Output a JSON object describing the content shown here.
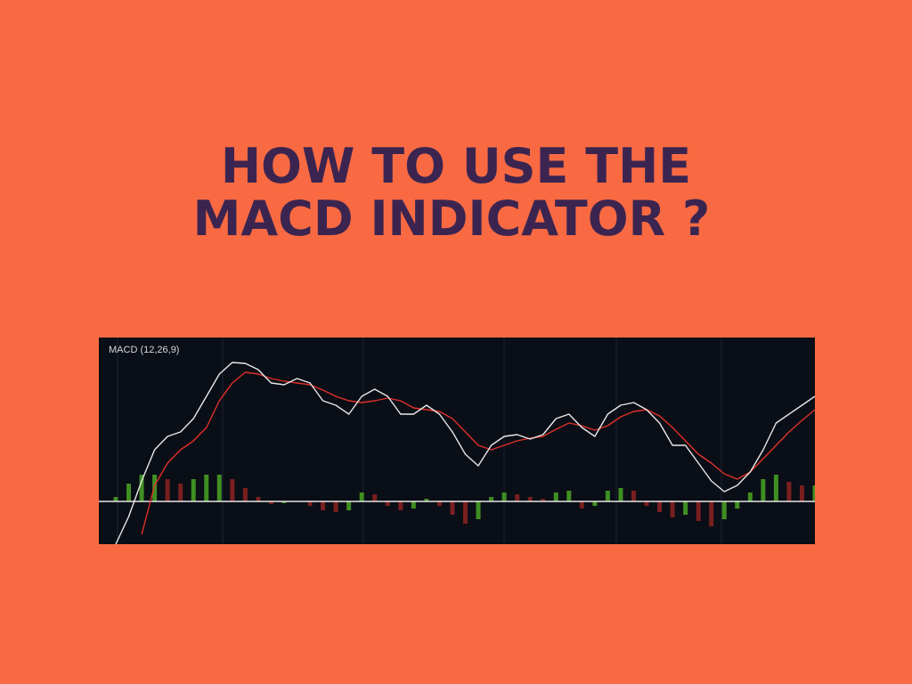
{
  "header": {
    "title_lines": [
      "HOW TO USE THE",
      "MACD INDICATOR ?"
    ]
  },
  "chart_data": {
    "type": "macd",
    "label": "MACD (12,26,9)",
    "ylim": [
      -48,
      184
    ],
    "series": [
      {
        "name": "MACD",
        "color": "#e8e8e8",
        "values": [
          -48,
          -17,
          23,
          58,
          73,
          78,
          93,
          118,
          143,
          156,
          155,
          148,
          133,
          131,
          138,
          133,
          113,
          108,
          98,
          118,
          126,
          118,
          98,
          98,
          108,
          98,
          78,
          53,
          40,
          63,
          73,
          75,
          70,
          75,
          93,
          98,
          83,
          73,
          98,
          108,
          111,
          103,
          88,
          63,
          63,
          43,
          23,
          11,
          18,
          33,
          58,
          88,
          98,
          108,
          118
        ]
      },
      {
        "name": "Signal",
        "color": "#e0302a",
        "values": [
          null,
          null,
          -37,
          18,
          43,
          58,
          68,
          83,
          113,
          133,
          145,
          143,
          138,
          135,
          133,
          131,
          125,
          118,
          113,
          111,
          113,
          116,
          113,
          105,
          103,
          101,
          93,
          78,
          63,
          58,
          63,
          68,
          71,
          73,
          81,
          88,
          85,
          80,
          85,
          95,
          101,
          103,
          96,
          83,
          68,
          53,
          43,
          31,
          25,
          33,
          48,
          63,
          78,
          91,
          103
        ]
      },
      {
        "name": "Histogram",
        "colors": [
          "#3f8f22",
          "#7a1f1f"
        ],
        "values": [
          5,
          20,
          30,
          30,
          25,
          20,
          25,
          30,
          30,
          25,
          15,
          5,
          -3,
          -2,
          0,
          -5,
          -10,
          -12,
          -10,
          10,
          8,
          -5,
          -10,
          -8,
          3,
          -5,
          -15,
          -25,
          -20,
          5,
          10,
          8,
          5,
          3,
          10,
          12,
          -8,
          -5,
          12,
          15,
          12,
          -5,
          -12,
          -18,
          -15,
          -22,
          -28,
          -20,
          -8,
          10,
          25,
          30,
          22,
          18,
          18
        ]
      }
    ]
  }
}
